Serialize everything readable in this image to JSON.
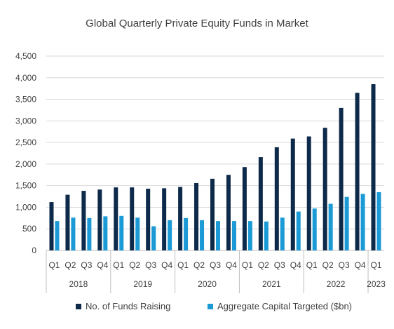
{
  "chart_data": {
    "type": "bar",
    "title": "Global Quarterly Private Equity Funds in Market",
    "xlabel": "",
    "ylabel": "",
    "ylim": [
      0,
      4500
    ],
    "yticks": [
      0,
      500,
      1000,
      1500,
      2000,
      2500,
      3000,
      3500,
      4000,
      4500
    ],
    "ytick_labels": [
      "0",
      "500",
      "1,000",
      "1,500",
      "2,000",
      "2,500",
      "3,000",
      "3,500",
      "4,000",
      "4,500"
    ],
    "grid": true,
    "legend_position": "bottom",
    "categories": [
      "Q1",
      "Q2",
      "Q3",
      "Q4",
      "Q1",
      "Q2",
      "Q3",
      "Q4",
      "Q1",
      "Q2",
      "Q3",
      "Q4",
      "Q1",
      "Q2",
      "Q3",
      "Q4",
      "Q1",
      "Q2",
      "Q3",
      "Q4",
      "Q1"
    ],
    "groups": [
      {
        "label": "2018",
        "count": 4
      },
      {
        "label": "2019",
        "count": 4
      },
      {
        "label": "2020",
        "count": 4
      },
      {
        "label": "2021",
        "count": 4
      },
      {
        "label": "2022",
        "count": 4
      },
      {
        "label": "2023",
        "count": 1
      }
    ],
    "series": [
      {
        "name": "No. of Funds Raising",
        "color": "#0d2a4a",
        "values": [
          1120,
          1290,
          1380,
          1410,
          1460,
          1460,
          1430,
          1440,
          1470,
          1560,
          1660,
          1750,
          1930,
          2160,
          2390,
          2590,
          2640,
          2840,
          3300,
          3650,
          3850
        ]
      },
      {
        "name": "Aggregate Capital Targeted ($bn)",
        "color": "#1b9ad6",
        "values": [
          680,
          760,
          750,
          790,
          800,
          760,
          560,
          700,
          750,
          700,
          680,
          680,
          680,
          670,
          760,
          900,
          970,
          1080,
          1240,
          1310,
          1350
        ]
      }
    ]
  }
}
